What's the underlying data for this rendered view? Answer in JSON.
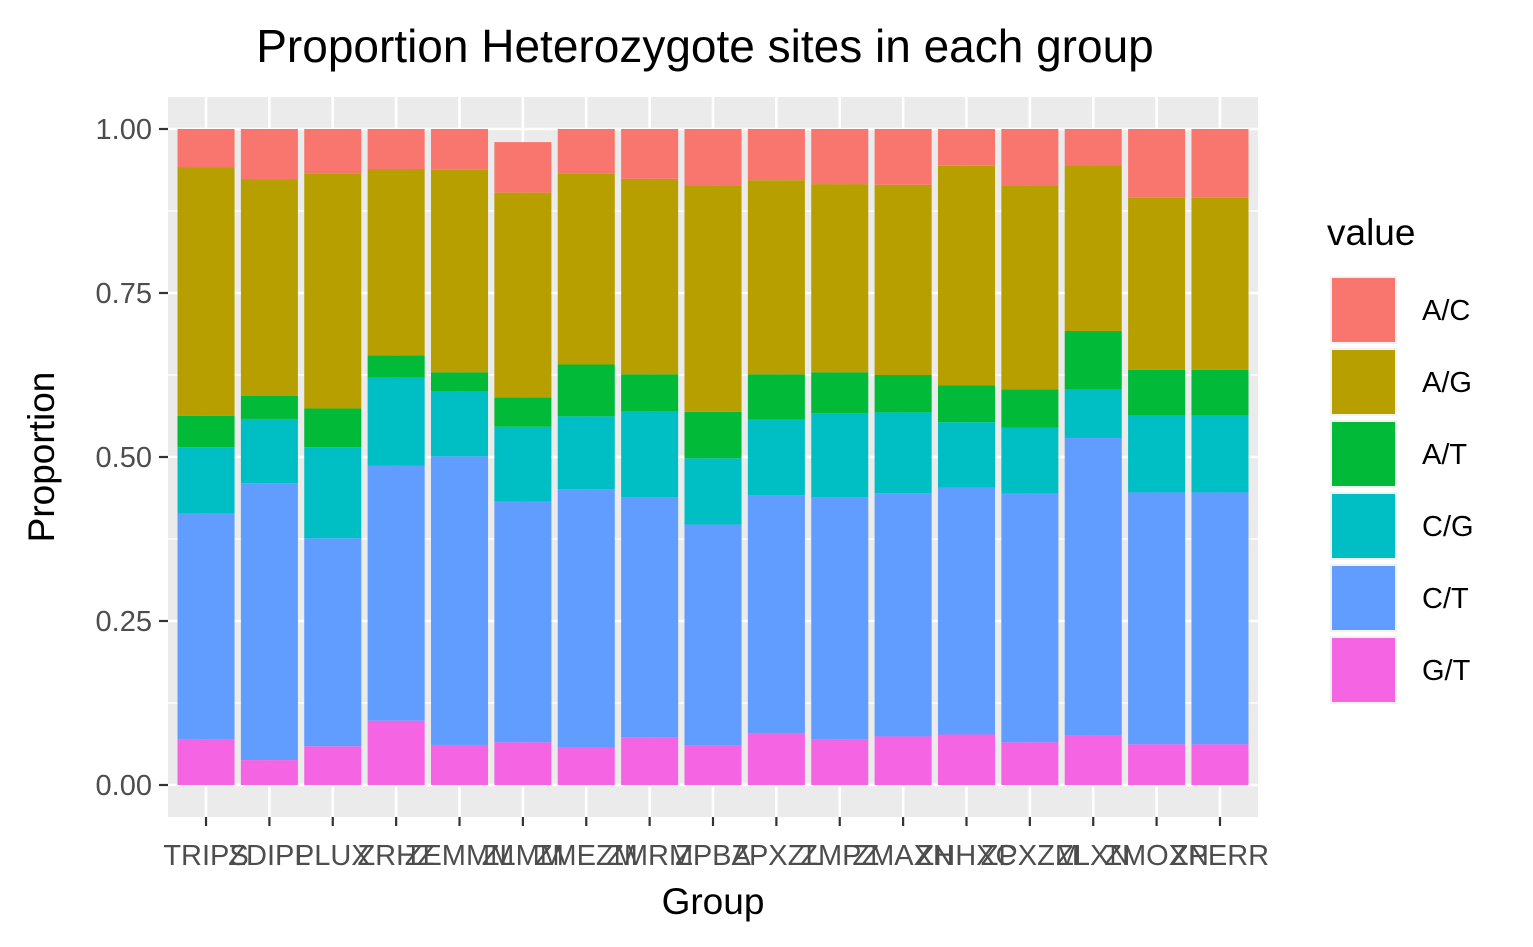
{
  "chart_data": {
    "type": "bar",
    "stacked": true,
    "title": "Proportion Heterozygote sites in each group",
    "xlabel": "Group",
    "ylabel": "Proportion",
    "ylim": [
      0,
      1
    ],
    "yticks": [
      "0.00",
      "0.25",
      "0.50",
      "0.75",
      "1.00"
    ],
    "ytick_values": [
      0,
      0.25,
      0.5,
      0.75,
      1.0
    ],
    "grid": true,
    "legend": {
      "title": "value",
      "position": "right"
    },
    "categories": [
      "TRIPS",
      "ZDIPL",
      "PLUX",
      "ZRHZ",
      "ZEMMM",
      "ZLMM",
      "ZMEZM",
      "ZMRM",
      "ZPBA",
      "ZPXZL",
      "ZMPZ",
      "ZMAXN",
      "ZHHXC",
      "ZPXZM",
      "ZLXN",
      "ZMOXN",
      "ZPERR"
    ],
    "series": [
      {
        "name": "A/C",
        "color": "#F8766D",
        "values": [
          0.058,
          0.077,
          0.068,
          0.061,
          0.062,
          0.077,
          0.068,
          0.076,
          0.086,
          0.078,
          0.084,
          0.085,
          0.056,
          0.086,
          0.055,
          0.105,
          0.105
        ]
      },
      {
        "name": "A/G",
        "color": "#B79F00",
        "values": [
          0.379,
          0.33,
          0.358,
          0.284,
          0.309,
          0.312,
          0.291,
          0.298,
          0.345,
          0.296,
          0.287,
          0.29,
          0.335,
          0.311,
          0.253,
          0.262,
          0.262
        ]
      },
      {
        "name": "A/T",
        "color": "#00BA38",
        "values": [
          0.048,
          0.035,
          0.059,
          0.034,
          0.029,
          0.045,
          0.079,
          0.057,
          0.071,
          0.069,
          0.062,
          0.057,
          0.056,
          0.058,
          0.089,
          0.07,
          0.07
        ]
      },
      {
        "name": "C/G",
        "color": "#00BFC4",
        "values": [
          0.101,
          0.098,
          0.139,
          0.134,
          0.099,
          0.114,
          0.111,
          0.13,
          0.101,
          0.115,
          0.128,
          0.123,
          0.1,
          0.101,
          0.074,
          0.117,
          0.117
        ]
      },
      {
        "name": "C/T",
        "color": "#619CFF",
        "values": [
          0.344,
          0.422,
          0.317,
          0.389,
          0.44,
          0.367,
          0.394,
          0.366,
          0.337,
          0.364,
          0.369,
          0.371,
          0.376,
          0.379,
          0.454,
          0.384,
          0.384
        ]
      },
      {
        "name": "G/T",
        "color": "#F564E3",
        "values": [
          0.07,
          0.038,
          0.059,
          0.098,
          0.061,
          0.065,
          0.057,
          0.073,
          0.06,
          0.078,
          0.07,
          0.074,
          0.077,
          0.065,
          0.075,
          0.062,
          0.062
        ]
      }
    ]
  }
}
